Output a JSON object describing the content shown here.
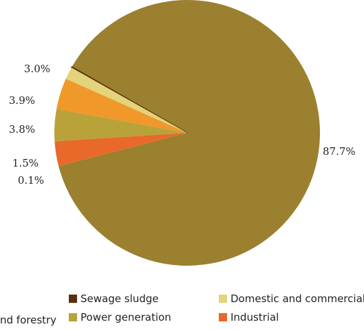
{
  "chart_data": {
    "type": "pie",
    "title": "",
    "series": [
      {
        "name": "",
        "slices": [
          {
            "label": "Agriculture and forestry",
            "value": 87.7,
            "label_text": "87.7%",
            "color": "#9A802F"
          },
          {
            "label": "Sewage sludge",
            "value": 0.1,
            "label_text": "0.1%",
            "color": "#5A2E10"
          },
          {
            "label": "Domestic and commercial",
            "value": 1.5,
            "label_text": "1.5%",
            "color": "#E3D37B"
          },
          {
            "label": "Power generation_2",
            "value": 3.8,
            "label_text": "3.8%",
            "color": "#F0982A"
          },
          {
            "label": "Power generation",
            "value": 3.9,
            "label_text": "3.9%",
            "color": "#B9A23A"
          },
          {
            "label": "Industrial",
            "value": 3.0,
            "label_text": "3.0%",
            "color": "#E8692A"
          }
        ]
      }
    ],
    "legend": {
      "placement": "bottom",
      "entries": [
        {
          "label": "nd forestry",
          "color": "#9A802F"
        },
        {
          "label": "Sewage sludge",
          "color": "#5A2E10"
        },
        {
          "label": "Power generation",
          "color": "#B9A23A"
        },
        {
          "label": "Domestic and commercial",
          "color": "#E3D37B"
        },
        {
          "label": "Industrial",
          "color": "#E8692A"
        }
      ]
    }
  }
}
